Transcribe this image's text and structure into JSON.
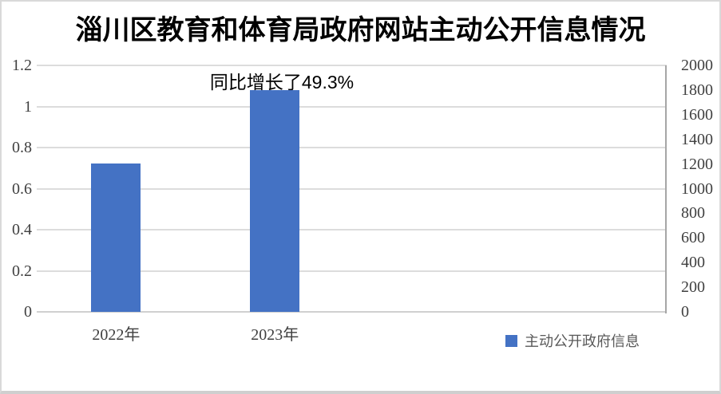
{
  "chart_data": {
    "type": "bar",
    "title": "淄川区教育和体育局政府网站主动公开信息情况",
    "categories": [
      "2022年",
      "2023年"
    ],
    "series": [
      {
        "name": "主动公开政府信息",
        "values": [
          1205,
          1800
        ],
        "value_axis": "right"
      }
    ],
    "left_axis_equivalent_values": [
      0.72,
      1.08
    ],
    "annotation": "同比增长了49.3%",
    "left_axis": {
      "min": 0,
      "max": 1.2,
      "step": 0.2,
      "tick_labels": [
        "1.2",
        "1",
        "0.8",
        "0.6",
        "0.4",
        "0.2",
        "0"
      ]
    },
    "right_axis": {
      "min": 0,
      "max": 2000,
      "step": 200,
      "tick_labels": [
        "2000",
        "1800",
        "1600",
        "1400",
        "1200",
        "1000",
        "800",
        "600",
        "400",
        "200",
        "0"
      ]
    },
    "grid": true,
    "legend_position": "bottom-right",
    "colors": {
      "bar": "#4472C4",
      "gridline": "#dcdcdc",
      "axis_line": "#a6a6a6",
      "tick_label": "#404040",
      "legend_text": "#595959",
      "annotation_text": "#000000",
      "title_text": "#000000"
    }
  }
}
